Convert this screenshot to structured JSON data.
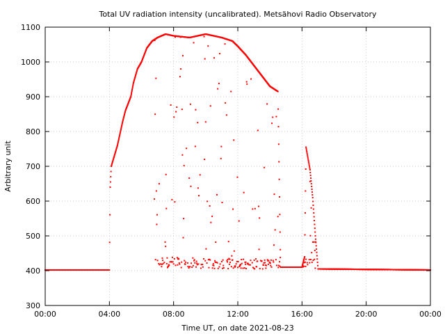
{
  "chart_data": {
    "type": "scatter",
    "title": "Total UV radiation intensity (uncalibrated). Metsähovi Radio Observatory",
    "xlabel": "Time UT, on date 2021-08-23",
    "ylabel": "Arbitrary unit",
    "xlim": [
      "00:00",
      "24:00"
    ],
    "ylim": [
      300,
      1100
    ],
    "grid": true,
    "legend": "none",
    "x_ticks": [
      "00:00",
      "04:00",
      "08:00",
      "12:00",
      "16:00",
      "20:00",
      "00:00"
    ],
    "y_ticks": [
      "300",
      "400",
      "500",
      "600",
      "700",
      "800",
      "900",
      "1000",
      "1100"
    ],
    "marker_color": "#ff0000",
    "series": [
      {
        "upper_envelope": [
          {
            "x": "00:00",
            "y": 402
          },
          {
            "x": "04:00",
            "y": 402
          },
          {
            "x": "04:03",
            "y": 640
          },
          {
            "x": "04:07",
            "y": 700
          },
          {
            "x": "04:30",
            "y": 760
          },
          {
            "x": "04:50",
            "y": 830
          },
          {
            "x": "05:00",
            "y": 860
          },
          {
            "x": "05:20",
            "y": 900
          },
          {
            "x": "05:30",
            "y": 940
          },
          {
            "x": "05:45",
            "y": 980
          },
          {
            "x": "06:00",
            "y": 1000
          },
          {
            "x": "06:20",
            "y": 1040
          },
          {
            "x": "06:40",
            "y": 1060
          },
          {
            "x": "07:00",
            "y": 1070
          },
          {
            "x": "07:30",
            "y": 1080
          },
          {
            "x": "08:00",
            "y": 1075
          },
          {
            "x": "09:00",
            "y": 1070
          },
          {
            "x": "10:00",
            "y": 1080
          },
          {
            "x": "11:00",
            "y": 1070
          },
          {
            "x": "11:40",
            "y": 1060
          },
          {
            "x": "12:00",
            "y": 1045
          },
          {
            "x": "12:30",
            "y": 1020
          },
          {
            "x": "13:00",
            "y": 990
          },
          {
            "x": "13:30",
            "y": 960
          },
          {
            "x": "14:00",
            "y": 930
          },
          {
            "x": "14:30",
            "y": 915
          },
          {
            "x": "14:40",
            "y": 410
          },
          {
            "x": "16:00",
            "y": 410
          },
          {
            "x": "16:10",
            "y": 440
          },
          {
            "x": "16:15",
            "y": 755
          },
          {
            "x": "16:30",
            "y": 690
          },
          {
            "x": "16:40",
            "y": 610
          },
          {
            "x": "16:50",
            "y": 500
          },
          {
            "x": "17:00",
            "y": 405
          },
          {
            "x": "24:00",
            "y": 402
          }
        ],
        "lower_baseline": [
          {
            "x": "06:50",
            "y": 405
          },
          {
            "x": "08:00",
            "y": 410
          },
          {
            "x": "10:00",
            "y": 405
          },
          {
            "x": "12:00",
            "y": 405
          },
          {
            "x": "14:00",
            "y": 405
          },
          {
            "x": "16:00",
            "y": 403
          }
        ]
      }
    ]
  }
}
